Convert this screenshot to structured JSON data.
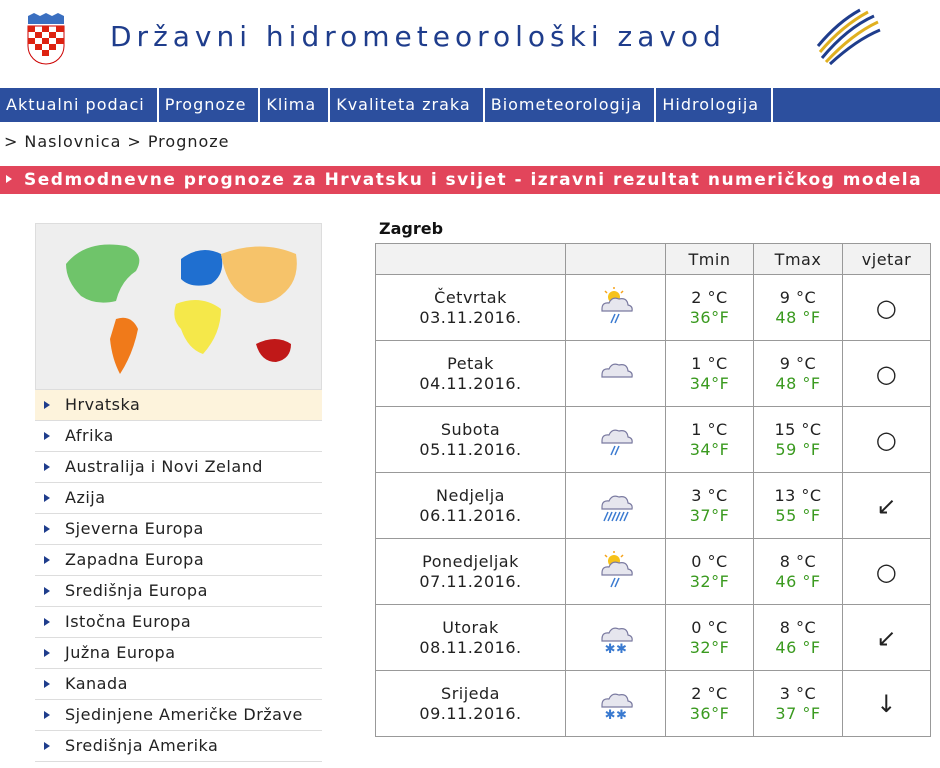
{
  "header": {
    "title": "Državni hidrometeorološki zavod"
  },
  "nav": [
    "Aktualni podaci",
    "Prognoze",
    "Klima",
    "Kvaliteta zraka",
    "Biometeorologija",
    "Hidrologija"
  ],
  "breadcrumb": {
    "separator": ">",
    "items": [
      "Naslovnica",
      "Prognoze"
    ]
  },
  "banner": "Sedmodnevne prognoze za Hrvatsku i svijet - izravni rezultat numeričkog modela",
  "regions": [
    "Hrvatska",
    "Afrika",
    "Australija i Novi Zeland",
    "Azija",
    "Sjeverna Europa",
    "Zapadna Europa",
    "Središnja Europa",
    "Istočna Europa",
    "Južna Europa",
    "Kanada",
    "Sjedinjene Američke Države",
    "Središnja Amerika"
  ],
  "forecast": {
    "city": "Zagreb",
    "columns": [
      "Tmin",
      "Tmax",
      "vjetar"
    ],
    "rows": [
      {
        "day": "Četvrtak",
        "date": "03.11.2016.",
        "icon": "sun-rain",
        "tmin": "2 °C",
        "tmin_f": "36°F",
        "tmax": "9 °C",
        "tmax_f": "48 °F",
        "wind": "○"
      },
      {
        "day": "Petak",
        "date": "04.11.2016.",
        "icon": "cloud",
        "tmin": "1 °C",
        "tmin_f": "34°F",
        "tmax": "9 °C",
        "tmax_f": "48 °F",
        "wind": "○"
      },
      {
        "day": "Subota",
        "date": "05.11.2016.",
        "icon": "cloud-rain",
        "tmin": "1 °C",
        "tmin_f": "34°F",
        "tmax": "15 °C",
        "tmax_f": "59 °F",
        "wind": "○"
      },
      {
        "day": "Nedjelja",
        "date": "06.11.2016.",
        "icon": "cloud-heavy-rain",
        "tmin": "3 °C",
        "tmin_f": "37°F",
        "tmax": "13 °C",
        "tmax_f": "55 °F",
        "wind": "↙"
      },
      {
        "day": "Ponedjeljak",
        "date": "07.11.2016.",
        "icon": "sun-rain",
        "tmin": "0 °C",
        "tmin_f": "32°F",
        "tmax": "8 °C",
        "tmax_f": "46 °F",
        "wind": "○"
      },
      {
        "day": "Utorak",
        "date": "08.11.2016.",
        "icon": "cloud-snow",
        "tmin": "0 °C",
        "tmin_f": "32°F",
        "tmax": "8 °C",
        "tmax_f": "46 °F",
        "wind": "↙"
      },
      {
        "day": "Srijeda",
        "date": "09.11.2016.",
        "icon": "cloud-snow",
        "tmin": "2 °C",
        "tmin_f": "36°F",
        "tmax": "3 °C",
        "tmax_f": "37 °F",
        "wind": "↓"
      }
    ]
  }
}
